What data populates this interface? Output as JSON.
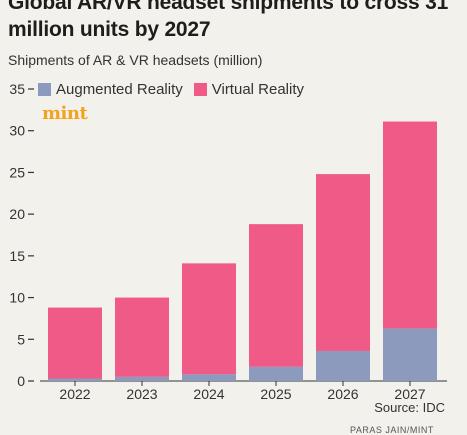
{
  "title": "Global AR/VR headset shipments to cross 31 million units by 2027",
  "subtitle": "Shipments of AR & VR headsets (million)",
  "logo": "mint",
  "source": "Source: IDC",
  "credit": "PARAS JAIN/MINT",
  "colors": {
    "ar": "#8c9bbd",
    "vr": "#ef5a87",
    "axis": "#333333"
  },
  "chart_data": {
    "type": "bar",
    "stacked": true,
    "categories": [
      "2022",
      "2023",
      "2024",
      "2025",
      "2026",
      "2027"
    ],
    "series": [
      {
        "name": "Augmented Reality",
        "values": [
          0.3,
          0.5,
          0.8,
          1.7,
          3.6,
          6.3
        ]
      },
      {
        "name": "Virtual Reality",
        "values": [
          8.5,
          9.5,
          13.3,
          17.1,
          21.2,
          24.8
        ]
      }
    ],
    "totals": [
      8.8,
      10.0,
      14.1,
      18.8,
      24.8,
      31.1
    ],
    "ylim": [
      0,
      35
    ],
    "yticks": [
      0,
      5,
      10,
      15,
      20,
      25,
      30,
      35
    ],
    "grid": false,
    "legend_position": "top-left"
  }
}
